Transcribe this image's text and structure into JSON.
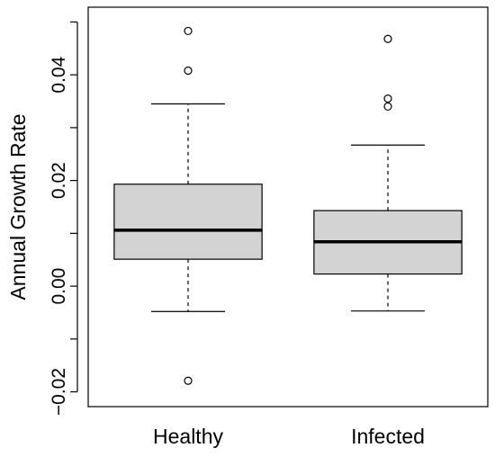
{
  "chart_data": {
    "type": "boxplot",
    "title": "",
    "xlabel": "",
    "ylabel": "Annual Growth Rate",
    "ylim": [
      -0.02,
      0.05
    ],
    "yticks": [
      -0.02,
      0.0,
      0.02,
      0.04
    ],
    "ytick_labels": [
      "−0.02",
      "0.00",
      "0.02",
      "0.04"
    ],
    "grid": false,
    "categories": [
      "Healthy",
      "Infected"
    ],
    "box_fill": "#d3d3d3",
    "boxes": [
      {
        "category": "Healthy",
        "whisker_low": -0.0048,
        "q1": 0.0051,
        "median": 0.0106,
        "q3": 0.0193,
        "whisker_high": 0.0345,
        "outliers": [
          0.0483,
          0.0408,
          -0.0179
        ]
      },
      {
        "category": "Infected",
        "whisker_low": -0.0047,
        "q1": 0.0023,
        "median": 0.0084,
        "q3": 0.0143,
        "whisker_high": 0.0267,
        "outliers": [
          0.0468,
          0.0355,
          0.034
        ]
      }
    ]
  }
}
